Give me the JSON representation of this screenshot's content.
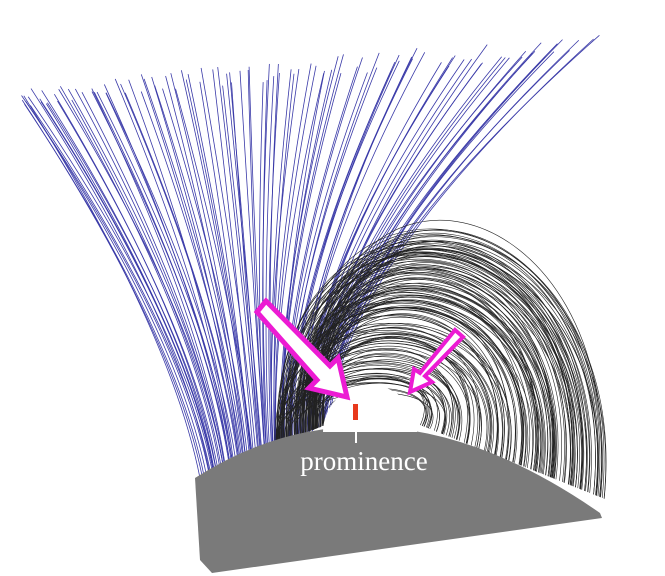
{
  "annotation": {
    "label": "prominence"
  }
}
